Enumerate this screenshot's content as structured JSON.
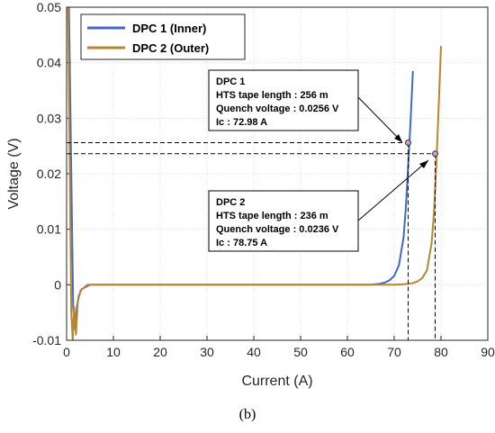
{
  "caption": "(b)",
  "chart_data": {
    "type": "line",
    "title": "",
    "xlabel": "Current (A)",
    "ylabel": "Voltage (V)",
    "xlim": [
      0,
      90
    ],
    "ylim": [
      -0.01,
      0.05
    ],
    "xticks": [
      0,
      10,
      20,
      30,
      40,
      50,
      60,
      70,
      80,
      90
    ],
    "yticks": [
      -0.01,
      0,
      0.01,
      0.02,
      0.03,
      0.04,
      0.05
    ],
    "ytick_labels": [
      "-0.01",
      "0",
      "0.01",
      "0.02",
      "0.03",
      "0.04",
      "0.05"
    ],
    "grid": true,
    "legend_position": "top-left",
    "series": [
      {
        "name": "DPC 1 (Inner)",
        "color": "#4169c8",
        "points": [
          [
            0.5,
            0.05
          ],
          [
            1.0,
            0.02
          ],
          [
            1.4,
            -0.004
          ],
          [
            1.8,
            -0.008
          ],
          [
            2.2,
            -0.004
          ],
          [
            2.6,
            -0.002
          ],
          [
            3.2,
            -0.0008
          ],
          [
            5,
            0.0
          ],
          [
            20,
            0.0
          ],
          [
            40,
            0.0
          ],
          [
            60,
            0.0
          ],
          [
            65,
            0.0
          ],
          [
            66,
            0.0001
          ],
          [
            67,
            0.0002
          ],
          [
            68,
            0.0004
          ],
          [
            69,
            0.0008
          ],
          [
            70,
            0.0016
          ],
          [
            71,
            0.0035
          ],
          [
            72,
            0.0085
          ],
          [
            72.5,
            0.014
          ],
          [
            73,
            0.0215
          ],
          [
            73.5,
            0.0295
          ],
          [
            74,
            0.0385
          ]
        ]
      },
      {
        "name": "DPC 2 (Outer)",
        "color": "#b8862e",
        "points": [
          [
            0.3,
            0.05
          ],
          [
            0.7,
            0.02
          ],
          [
            1.0,
            -0.005
          ],
          [
            1.3,
            -0.01
          ],
          [
            1.6,
            -0.004
          ],
          [
            2.0,
            -0.009
          ],
          [
            2.4,
            -0.003
          ],
          [
            3.0,
            -0.001
          ],
          [
            4.5,
            0.0
          ],
          [
            10,
            0.0
          ],
          [
            20,
            0.0
          ],
          [
            30,
            0.0
          ],
          [
            40,
            0.0
          ],
          [
            50,
            0.0
          ],
          [
            60,
            0.0
          ],
          [
            70,
            0.0
          ],
          [
            72,
            0.0001
          ],
          [
            74,
            0.0003
          ],
          [
            75,
            0.0006
          ],
          [
            76,
            0.0012
          ],
          [
            77,
            0.0026
          ],
          [
            78,
            0.0075
          ],
          [
            78.5,
            0.013
          ],
          [
            79,
            0.0215
          ],
          [
            79.5,
            0.032
          ],
          [
            80,
            0.043
          ]
        ]
      }
    ],
    "markers": [
      {
        "label": "DPC 1",
        "x": 72.98,
        "y": 0.0256
      },
      {
        "label": "DPC 2",
        "x": 78.75,
        "y": 0.0236
      }
    ],
    "annotations": [
      {
        "lines": [
          "DPC 1",
          "HTS tape length : 256 m",
          "Quench voltage : 0.0256 V",
          "Ic : 72.98 A"
        ]
      },
      {
        "lines": [
          "DPC 2",
          "HTS tape length : 236 m",
          "Quench voltage : 0.0236 V",
          "Ic : 78.75 A"
        ]
      }
    ]
  }
}
